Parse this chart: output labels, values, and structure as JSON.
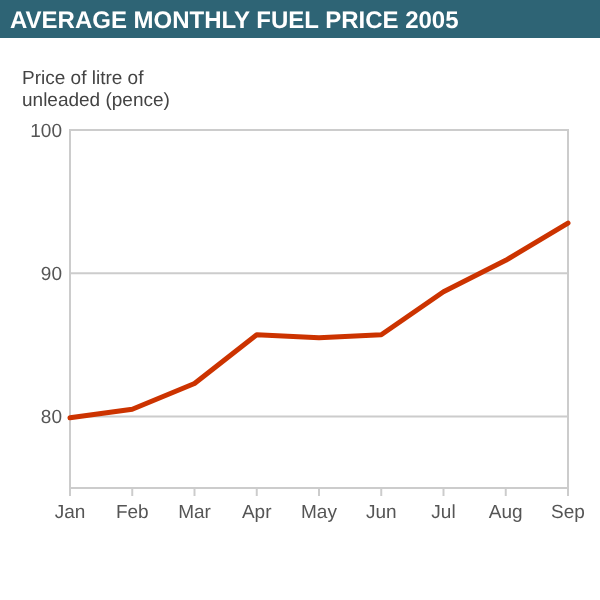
{
  "chart_data": {
    "type": "line",
    "title": "AVERAGE MONTHLY FUEL PRICE 2005",
    "ylabel": "Price of litre of unleaded (pence)",
    "categories": [
      "Jan",
      "Feb",
      "Mar",
      "Apr",
      "May",
      "Jun",
      "Jul",
      "Aug",
      "Sep"
    ],
    "series": [
      {
        "color": "#cc3300",
        "values": [
          79.9,
          80.5,
          82.3,
          85.7,
          85.5,
          85.7,
          88.7,
          90.9,
          93.5
        ]
      }
    ],
    "ylim": [
      75,
      100
    ],
    "yticks": [
      80,
      90,
      100
    ],
    "grid": "y",
    "marker": "none",
    "line_style": "solid"
  }
}
